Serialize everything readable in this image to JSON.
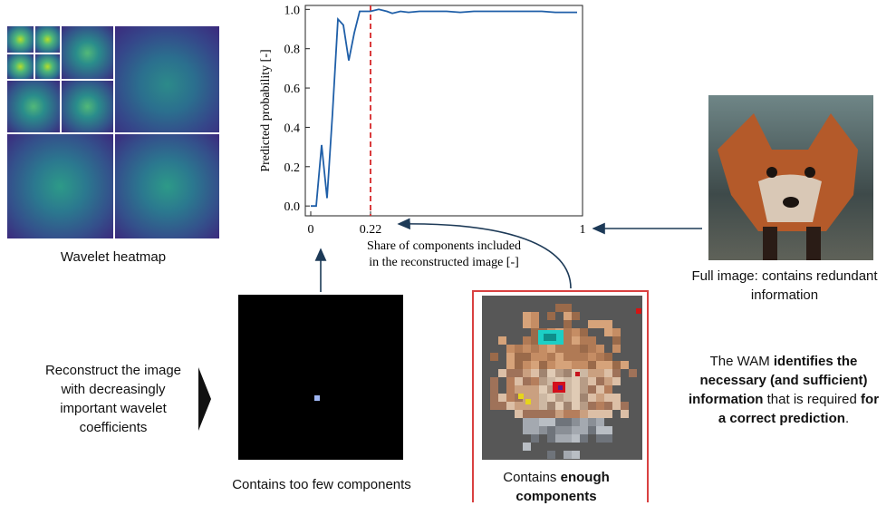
{
  "heatmap": {
    "caption": "Wavelet heatmap"
  },
  "chart_data": {
    "type": "line",
    "xlabel": "Share of components included in the reconstructed image [-]",
    "xlabel_lines": [
      "Share of components included",
      "in the reconstructed image [-]"
    ],
    "ylabel": "Predicted probability [-]",
    "xticks": [
      "0",
      "0.22",
      "1"
    ],
    "yticks": [
      "0.0",
      "0.2",
      "0.4",
      "0.6",
      "0.8",
      "1.0"
    ],
    "xlim": [
      -0.02,
      1.0
    ],
    "ylim": [
      -0.05,
      1.02
    ],
    "threshold": 0.22,
    "series": [
      {
        "color": "#1f5fa8",
        "x": [
          0.0,
          0.02,
          0.04,
          0.06,
          0.08,
          0.1,
          0.12,
          0.14,
          0.16,
          0.18,
          0.2,
          0.22,
          0.25,
          0.28,
          0.3,
          0.33,
          0.36,
          0.4,
          0.45,
          0.5,
          0.55,
          0.6,
          0.65,
          0.7,
          0.75,
          0.8,
          0.85,
          0.9,
          0.95,
          0.98
        ],
        "y": [
          0.0,
          0.0,
          0.31,
          0.04,
          0.47,
          0.95,
          0.92,
          0.74,
          0.88,
          0.99,
          0.99,
          0.99,
          1.0,
          0.99,
          0.98,
          0.99,
          0.985,
          0.99,
          0.99,
          0.99,
          0.985,
          0.99,
          0.99,
          0.99,
          0.99,
          0.99,
          0.99,
          0.985,
          0.985,
          0.985
        ]
      }
    ]
  },
  "full_image": {
    "caption_line1": "Full image: contains redundant",
    "caption_line2": "information"
  },
  "left_text": {
    "line1": "Reconstruct the image",
    "line2": "with decreasingly",
    "line3": "important wavelet",
    "line4": "coefficients"
  },
  "few": {
    "caption": "Contains too few components"
  },
  "enough": {
    "caption_pre": "Contains ",
    "caption_bold1": "enough",
    "caption_bold2": "components"
  },
  "right_text": {
    "p1": "The WAM ",
    "b1": "identifies the",
    "b2": "necessary (and sufficient)",
    "b3": "information",
    "p2": " that is required ",
    "b4": "for",
    "b5": "a correct prediction",
    "p3": "."
  },
  "colors": {
    "accent_red": "#d62728",
    "series_blue": "#1f5fa8",
    "arrow": "#1d3a57"
  }
}
